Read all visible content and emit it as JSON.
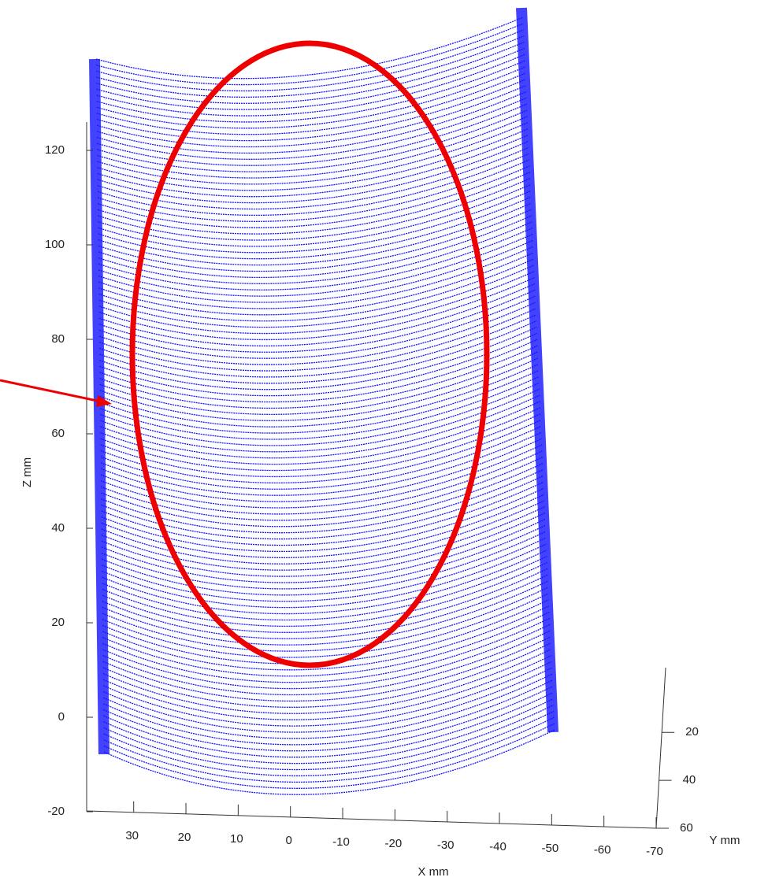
{
  "chart_data": {
    "type": "scatter3d",
    "xlabel": "X mm",
    "ylabel": "Y mm",
    "zlabel": "Z mm",
    "color": "#1414ff",
    "xlim": [
      39,
      -70
    ],
    "xticks": [
      30,
      20,
      10,
      0,
      -10,
      -20,
      -30,
      -40,
      -50,
      -60,
      -70
    ],
    "ylim": [
      -7,
      60
    ],
    "yticks": [
      20,
      40,
      60
    ],
    "zlim": [
      -20,
      126
    ],
    "zticks": [
      120,
      100,
      80,
      60,
      40,
      20,
      0,
      -20
    ]
  }
}
